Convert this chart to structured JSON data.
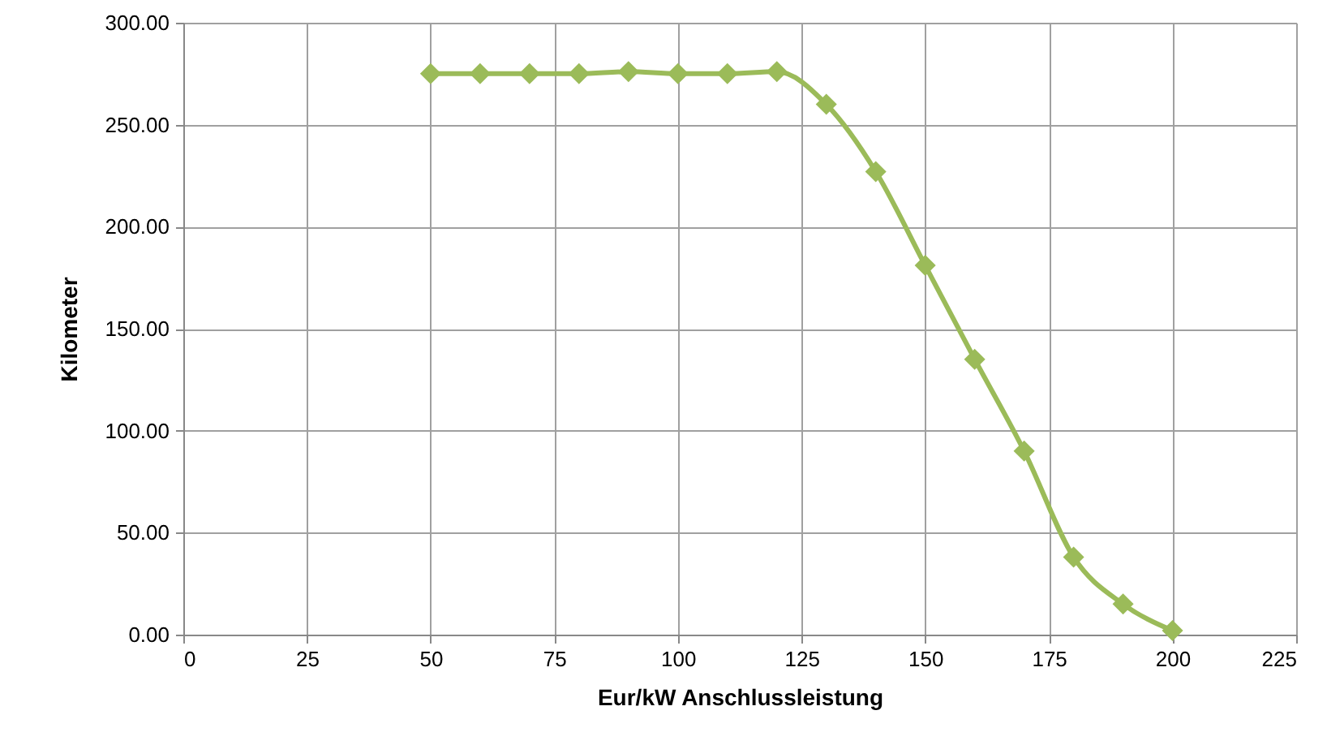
{
  "chart_data": {
    "type": "line",
    "xlabel": "Eur/kW Anschlussleistung",
    "ylabel": "Kilometer",
    "x": [
      50,
      60,
      70,
      80,
      90,
      100,
      110,
      120,
      130,
      140,
      150,
      160,
      170,
      180,
      190,
      200
    ],
    "series": [
      {
        "color": "#9bbb59",
        "values": [
          275,
          275,
          275,
          275,
          276,
          275,
          275,
          276,
          260,
          227,
          181,
          135,
          90,
          38,
          15,
          2
        ]
      }
    ],
    "xlim": [
      0,
      225
    ],
    "xticks": [
      0,
      25,
      50,
      75,
      100,
      125,
      150,
      175,
      200,
      225
    ],
    "ylim": [
      0,
      300
    ],
    "yticks": [
      {
        "value": 0,
        "label": "0.00"
      },
      {
        "value": 50,
        "label": "50.00"
      },
      {
        "value": 100,
        "label": "100.00"
      },
      {
        "value": 150,
        "label": "150.00"
      },
      {
        "value": 200,
        "label": "200.00"
      },
      {
        "value": 250,
        "label": "250.00"
      },
      {
        "value": 300,
        "label": "300.00"
      }
    ],
    "grid": true,
    "marker": "diamond",
    "line_style": "solid"
  }
}
